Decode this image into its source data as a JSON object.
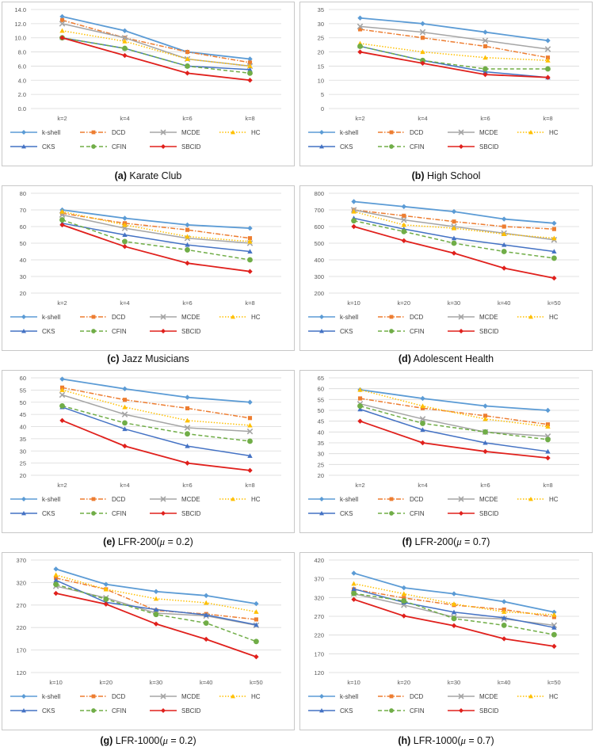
{
  "series_names": [
    "k-shell",
    "DCD",
    "MCDE",
    "HC",
    "CKS",
    "CFIN",
    "SBCID"
  ],
  "series_style": [
    {
      "color": "#5b9bd5",
      "dash": "",
      "marker": "diamond"
    },
    {
      "color": "#ed7d31",
      "dash": "6,2,1.5,2",
      "marker": "square"
    },
    {
      "color": "#a5a5a5",
      "dash": "",
      "marker": "x"
    },
    {
      "color": "#ffc000",
      "dash": "1.5,2",
      "marker": "triangle"
    },
    {
      "color": "#4472c4",
      "dash": "",
      "marker": "triangle"
    },
    {
      "color": "#70ad47",
      "dash": "5,3",
      "marker": "circle"
    },
    {
      "color": "#e0201c",
      "dash": "",
      "marker": "diamond"
    }
  ],
  "chart_data": [
    {
      "type": "line",
      "label": "(a)",
      "name": "Karate Club",
      "categories": [
        "k=2",
        "k=4",
        "k=6",
        "k=8"
      ],
      "ylim": [
        0,
        14
      ],
      "ystep": 2,
      "ydecimals": 1,
      "series": [
        {
          "name": "k-shell",
          "values": [
            13.0,
            11.0,
            8.0,
            7.0
          ]
        },
        {
          "name": "DCD",
          "values": [
            12.5,
            10.0,
            8.0,
            6.5
          ]
        },
        {
          "name": "MCDE",
          "values": [
            12.0,
            10.0,
            7.0,
            6.0
          ]
        },
        {
          "name": "HC",
          "values": [
            11.0,
            9.5,
            7.0,
            6.0
          ]
        },
        {
          "name": "CKS",
          "values": [
            10.0,
            8.5,
            6.0,
            5.5
          ]
        },
        {
          "name": "CFIN",
          "values": [
            10.0,
            8.5,
            6.0,
            5.0
          ]
        },
        {
          "name": "SBCID",
          "values": [
            10.0,
            7.5,
            5.0,
            4.0
          ]
        }
      ]
    },
    {
      "type": "line",
      "label": "(b)",
      "name": "High School",
      "categories": [
        "k=2",
        "k=4",
        "k=6",
        "k=8"
      ],
      "ylim": [
        0,
        35
      ],
      "ystep": 5,
      "ydecimals": 0,
      "series": [
        {
          "name": "k-shell",
          "values": [
            32,
            30,
            27,
            24
          ]
        },
        {
          "name": "DCD",
          "values": [
            28,
            25,
            22,
            18
          ]
        },
        {
          "name": "MCDE",
          "values": [
            29,
            27,
            24,
            21
          ]
        },
        {
          "name": "HC",
          "values": [
            23,
            20,
            18,
            17
          ]
        },
        {
          "name": "CKS",
          "values": [
            22,
            17,
            13,
            11
          ]
        },
        {
          "name": "CFIN",
          "values": [
            22,
            17,
            14,
            14
          ]
        },
        {
          "name": "SBCID",
          "values": [
            20,
            16,
            12,
            11
          ]
        }
      ]
    },
    {
      "type": "line",
      "label": "(c)",
      "name": "Jazz Musicians",
      "categories": [
        "k=2",
        "k=4",
        "k=6",
        "k=8"
      ],
      "ylim": [
        20,
        80
      ],
      "ystep": 10,
      "ydecimals": 0,
      "series": [
        {
          "name": "k-shell",
          "values": [
            70,
            65,
            61,
            59
          ]
        },
        {
          "name": "DCD",
          "values": [
            68,
            62,
            58,
            53
          ]
        },
        {
          "name": "MCDE",
          "values": [
            67,
            59,
            53,
            50
          ]
        },
        {
          "name": "HC",
          "values": [
            69,
            61,
            54,
            51
          ]
        },
        {
          "name": "CKS",
          "values": [
            62,
            55,
            49,
            45
          ]
        },
        {
          "name": "CFIN",
          "values": [
            64,
            51,
            46,
            40
          ]
        },
        {
          "name": "SBCID",
          "values": [
            61,
            48,
            38,
            33
          ]
        }
      ]
    },
    {
      "type": "line",
      "label": "(d)",
      "name": "Adolescent Health",
      "categories": [
        "k=10",
        "k=20",
        "k=30",
        "k=40",
        "k=50"
      ],
      "ylim": [
        200,
        800
      ],
      "ystep": 100,
      "ydecimals": 0,
      "series": [
        {
          "name": "k-shell",
          "values": [
            750,
            720,
            690,
            645,
            620
          ]
        },
        {
          "name": "DCD",
          "values": [
            700,
            665,
            630,
            600,
            585
          ]
        },
        {
          "name": "MCDE",
          "values": [
            700,
            640,
            600,
            560,
            520
          ]
        },
        {
          "name": "HC",
          "values": [
            690,
            610,
            590,
            555,
            530
          ]
        },
        {
          "name": "CKS",
          "values": [
            650,
            585,
            530,
            490,
            450
          ]
        },
        {
          "name": "CFIN",
          "values": [
            635,
            570,
            500,
            450,
            410
          ]
        },
        {
          "name": "SBCID",
          "values": [
            600,
            515,
            440,
            350,
            290
          ]
        }
      ]
    },
    {
      "type": "line",
      "label": "(e)",
      "name": "LFR-200(",
      "mu": "μ",
      "mu_tail": " = 0.2)",
      "categories": [
        "k=2",
        "k=4",
        "k=6",
        "k=8"
      ],
      "ylim": [
        20,
        60
      ],
      "ystep": 5,
      "ydecimals": 0,
      "series": [
        {
          "name": "k-shell",
          "values": [
            59.5,
            55.5,
            52,
            50
          ]
        },
        {
          "name": "DCD",
          "values": [
            56,
            51,
            47.5,
            43.5
          ]
        },
        {
          "name": "MCDE",
          "values": [
            53,
            45,
            39.5,
            38
          ]
        },
        {
          "name": "HC",
          "values": [
            55,
            48,
            42.5,
            40.5
          ]
        },
        {
          "name": "CKS",
          "values": [
            48,
            39,
            32,
            28
          ]
        },
        {
          "name": "CFIN",
          "values": [
            48.5,
            41.5,
            37,
            34
          ]
        },
        {
          "name": "SBCID",
          "values": [
            42.5,
            32,
            25,
            22
          ]
        }
      ]
    },
    {
      "type": "line",
      "label": "(f)",
      "name": "LFR-200(",
      "mu": "μ",
      "mu_tail": " = 0.7)",
      "categories": [
        "k=2",
        "k=4",
        "k=6",
        "k=8"
      ],
      "ylim": [
        20,
        65
      ],
      "ystep": 5,
      "ydecimals": 0,
      "series": [
        {
          "name": "k-shell",
          "values": [
            59.5,
            55.5,
            52,
            50
          ]
        },
        {
          "name": "DCD",
          "values": [
            55.5,
            51,
            47.5,
            43.5
          ]
        },
        {
          "name": "MCDE",
          "values": [
            53,
            46,
            40,
            38
          ]
        },
        {
          "name": "HC",
          "values": [
            59.5,
            52,
            46,
            42.5
          ]
        },
        {
          "name": "CKS",
          "values": [
            50.5,
            41,
            35,
            31
          ]
        },
        {
          "name": "CFIN",
          "values": [
            52,
            44,
            40,
            36.5
          ]
        },
        {
          "name": "SBCID",
          "values": [
            45,
            35,
            31,
            28
          ]
        }
      ]
    },
    {
      "type": "line",
      "label": "(g)",
      "name": "LFR-1000(",
      "mu": "μ",
      "mu_tail": " = 0.2)",
      "categories": [
        "k=10",
        "k=20",
        "k=30",
        "k=40",
        "k=50"
      ],
      "ylim": [
        120,
        370
      ],
      "ystep": 50,
      "ydecimals": 0,
      "series": [
        {
          "name": "k-shell",
          "values": [
            350,
            316,
            300,
            291,
            273
          ]
        },
        {
          "name": "DCD",
          "values": [
            330,
            305,
            258,
            250,
            238
          ]
        },
        {
          "name": "MCDE",
          "values": [
            312,
            286,
            252,
            246,
            225
          ]
        },
        {
          "name": "HC",
          "values": [
            337,
            305,
            284,
            275,
            255
          ]
        },
        {
          "name": "CKS",
          "values": [
            325,
            276,
            260,
            248,
            226
          ]
        },
        {
          "name": "CFIN",
          "values": [
            316,
            283,
            249,
            230,
            189
          ]
        },
        {
          "name": "SBCID",
          "values": [
            296,
            272,
            228,
            194,
            155
          ]
        }
      ]
    },
    {
      "type": "line",
      "label": "(h)",
      "name": "LFR-1000(",
      "mu": "μ",
      "mu_tail": " = 0.7)",
      "categories": [
        "k=10",
        "k=20",
        "k=30",
        "k=40",
        "k=50"
      ],
      "ylim": [
        120,
        420
      ],
      "ystep": 50,
      "ydecimals": 0,
      "series": [
        {
          "name": "k-shell",
          "values": [
            385,
            346,
            330,
            309,
            281
          ]
        },
        {
          "name": "DCD",
          "values": [
            342,
            319,
            300,
            288,
            268
          ]
        },
        {
          "name": "MCDE",
          "values": [
            330,
            300,
            268,
            263,
            246
          ]
        },
        {
          "name": "HC",
          "values": [
            357,
            330,
            303,
            282,
            274
          ]
        },
        {
          "name": "CKS",
          "values": [
            343,
            307,
            281,
            266,
            240
          ]
        },
        {
          "name": "CFIN",
          "values": [
            331,
            311,
            264,
            246,
            221
          ]
        },
        {
          "name": "SBCID",
          "values": [
            315,
            271,
            245,
            210,
            190
          ]
        }
      ]
    }
  ]
}
